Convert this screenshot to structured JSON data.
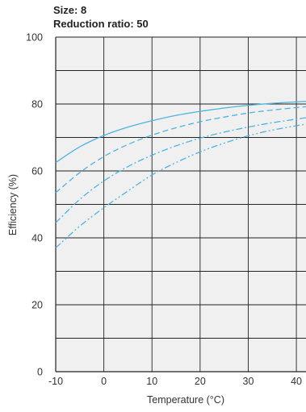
{
  "header": {
    "size_label": "Size: 8",
    "ratio_label": "Reduction ratio: 50"
  },
  "chart_data": {
    "type": "line",
    "title": "",
    "xlabel": "Temperature (°C)",
    "ylabel": "Efficiency (%)",
    "xlim": [
      -10,
      42
    ],
    "ylim": [
      0,
      100
    ],
    "x_ticks": [
      -10,
      0,
      10,
      20,
      30,
      40
    ],
    "y_ticks": [
      0,
      20,
      40,
      60,
      80,
      100
    ],
    "grid": true,
    "plot_background": "#f0f0f0",
    "grid_color": "#222222",
    "line_color": "#4fb3e0",
    "series": [
      {
        "dash": "solid",
        "x": [
          -10,
          -5,
          0,
          5,
          10,
          15,
          20,
          25,
          30,
          35,
          42
        ],
        "y": [
          62.5,
          67.2,
          70.6,
          73.1,
          75.0,
          76.6,
          77.8,
          78.8,
          79.6,
          80.2,
          80.8
        ]
      },
      {
        "dash": "dashed",
        "x": [
          -10,
          -5,
          0,
          5,
          10,
          15,
          20,
          25,
          30,
          35,
          42
        ],
        "y": [
          53.5,
          59.5,
          64.3,
          67.9,
          70.7,
          72.9,
          74.7,
          76.1,
          77.3,
          78.2,
          79.2
        ]
      },
      {
        "dash": "dashdot",
        "x": [
          -10,
          -5,
          0,
          5,
          10,
          15,
          20,
          25,
          30,
          35,
          42
        ],
        "y": [
          44.5,
          51.5,
          57.0,
          61.3,
          64.7,
          67.5,
          69.8,
          71.6,
          73.1,
          74.4,
          75.9
        ]
      },
      {
        "dash": "dashdotdot",
        "x": [
          -10,
          -5,
          0,
          5,
          10,
          15,
          20,
          25,
          30,
          35,
          42
        ],
        "y": [
          37.0,
          43.5,
          49.0,
          54.0,
          58.8,
          62.5,
          65.7,
          68.3,
          70.5,
          72.2,
          74.0
        ]
      }
    ]
  }
}
